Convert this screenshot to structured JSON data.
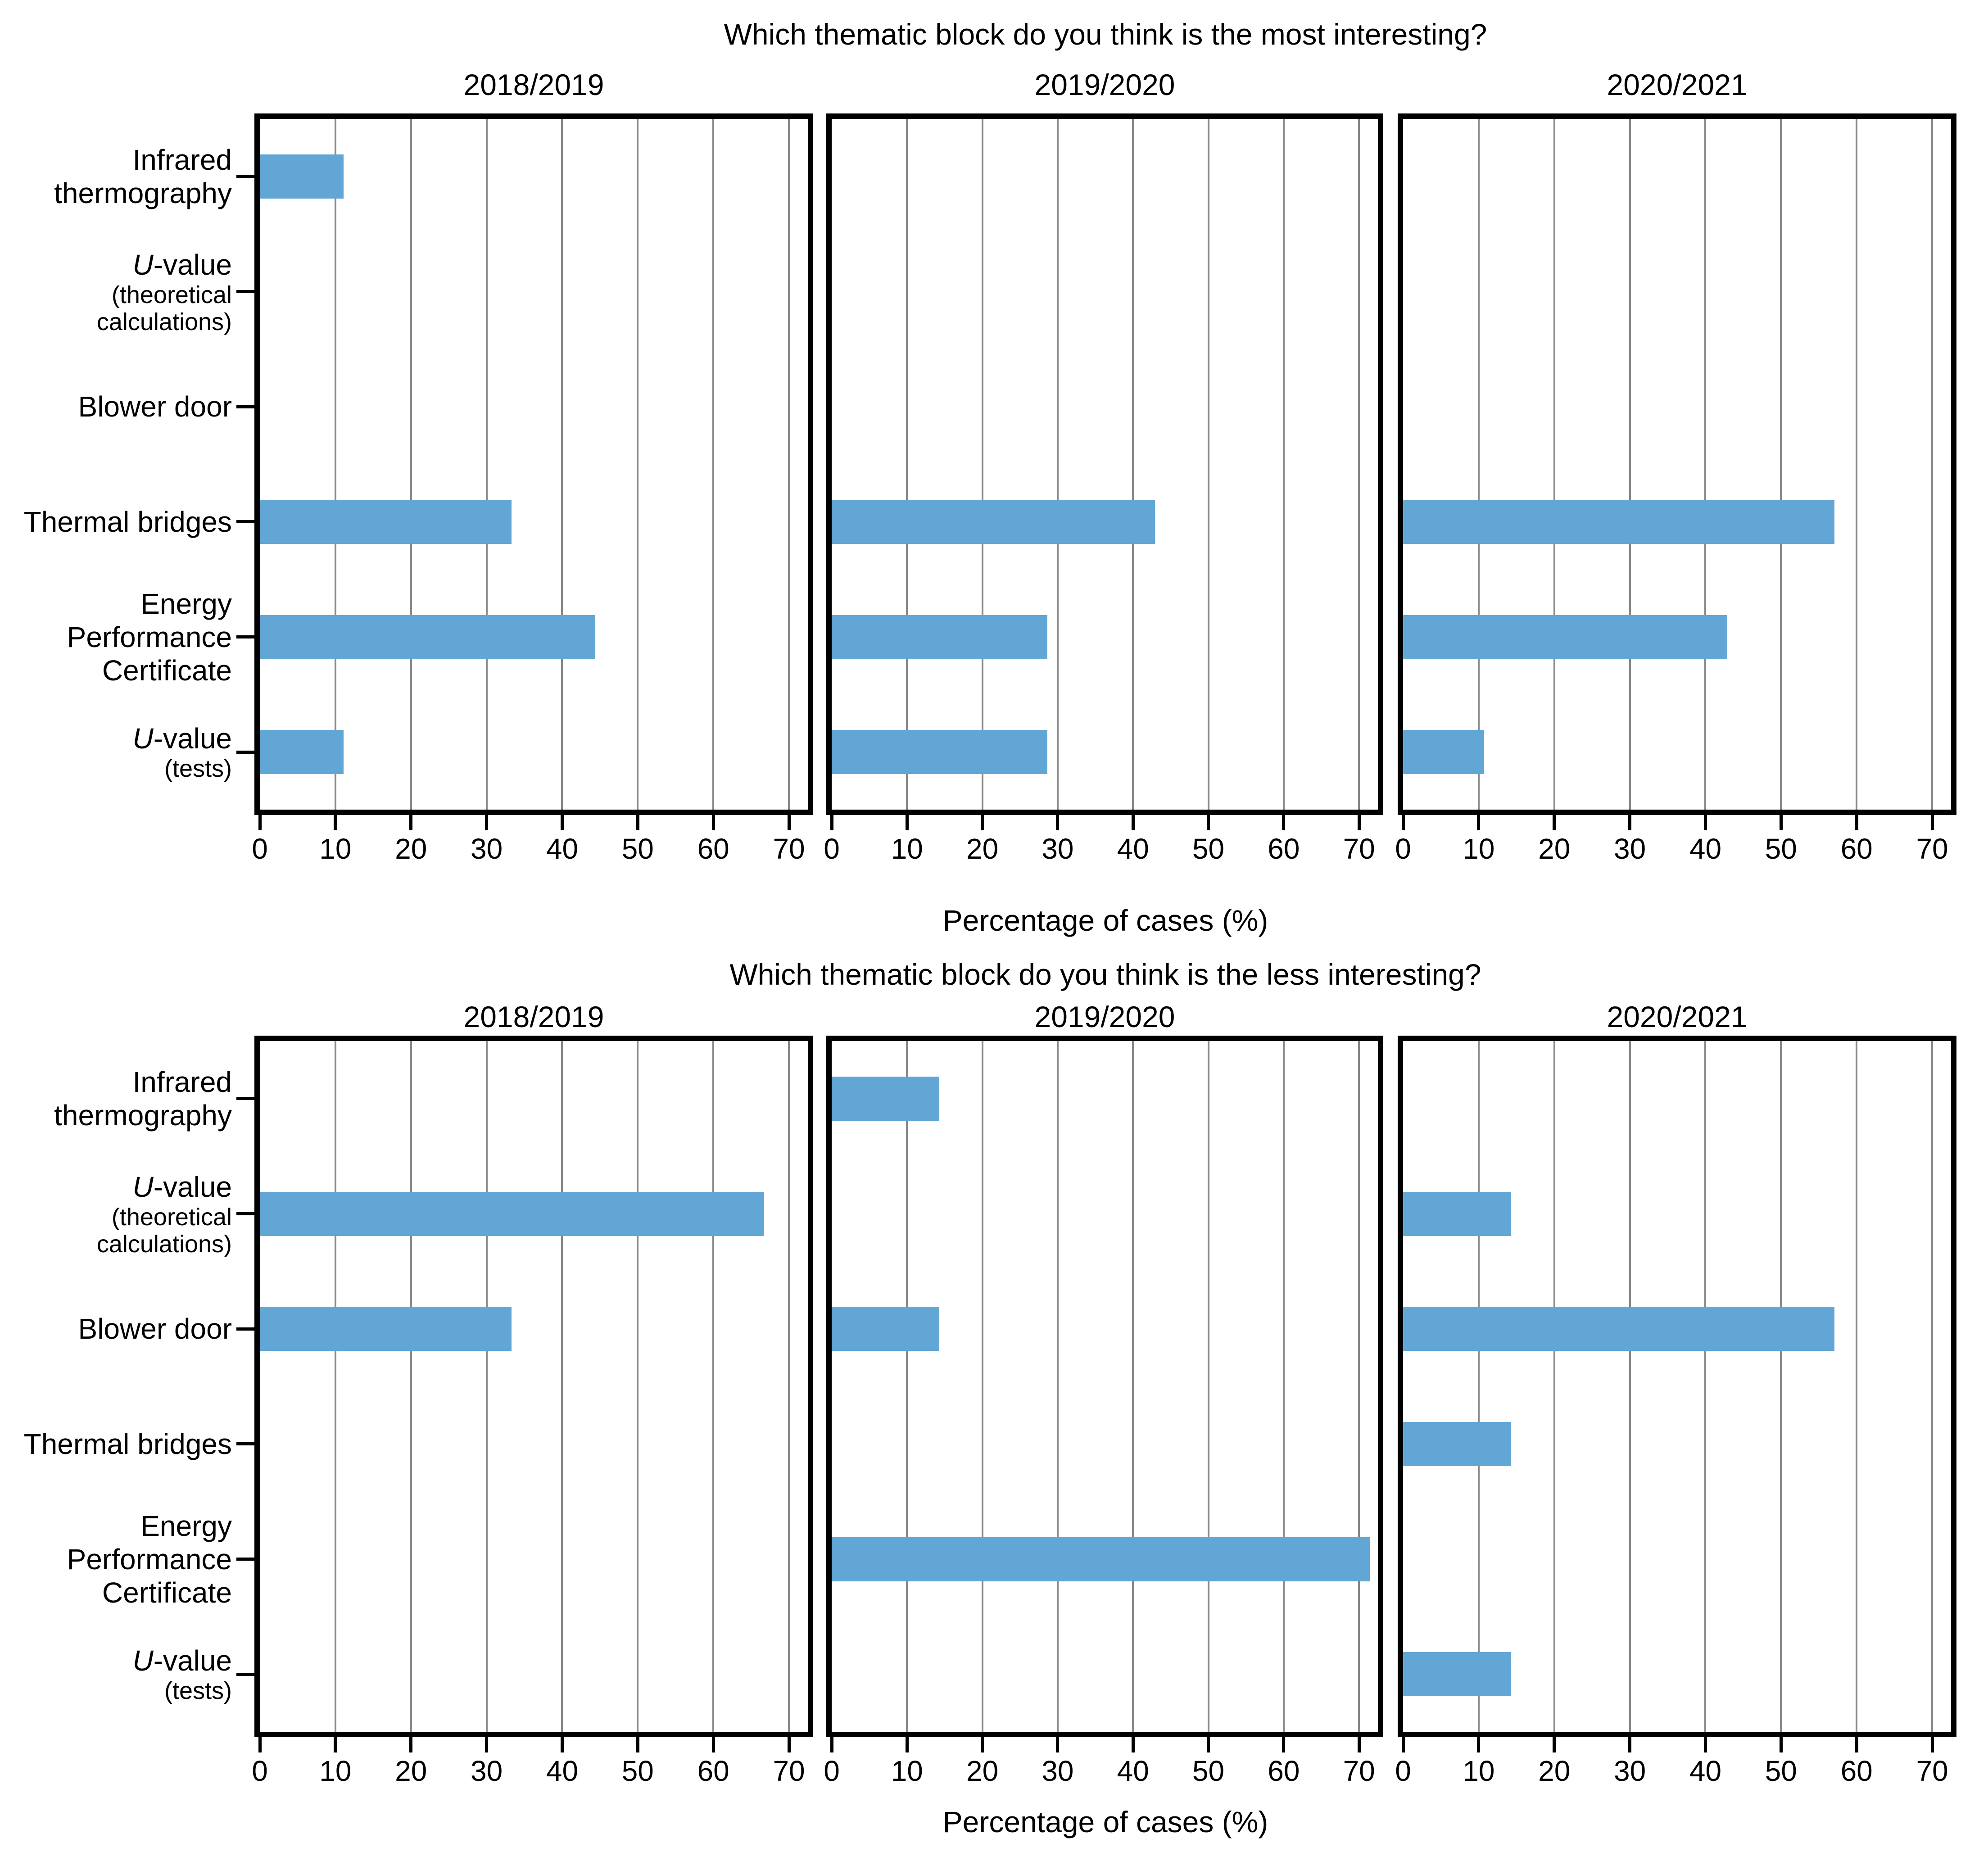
{
  "figure": {
    "background": "#ffffff",
    "colors": {
      "bar": "#62a6d6",
      "grid": "#888888",
      "axis": "#000000",
      "text": "#000000"
    }
  },
  "category_labels": [
    {
      "id": "infrared-thermography",
      "lines": [
        {
          "text": "Infrared"
        },
        {
          "text": "thermography"
        }
      ]
    },
    {
      "id": "u-value-theoretical-calculations",
      "lines": [
        {
          "italic_head": "U",
          "rest": "-value"
        },
        {
          "text": "(theoretical",
          "small": true
        },
        {
          "text": "calculations)",
          "small": true
        }
      ]
    },
    {
      "id": "blower-door",
      "lines": [
        {
          "text": "Blower door"
        }
      ]
    },
    {
      "id": "thermal-bridges",
      "lines": [
        {
          "text": "Thermal bridges"
        }
      ]
    },
    {
      "id": "energy-performance-certificate",
      "lines": [
        {
          "text": "Energy"
        },
        {
          "text": "Performance"
        },
        {
          "text": "Certificate"
        }
      ]
    },
    {
      "id": "u-value-tests",
      "lines": [
        {
          "italic_head": "U",
          "rest": "-value"
        },
        {
          "text": "(tests)",
          "small": true
        }
      ]
    }
  ],
  "chart_data": [
    {
      "type": "bar",
      "orientation": "horizontal",
      "title": "Which thematic block do you think is the most interesting?",
      "xlabel": "Percentage of cases (%)",
      "xlim": [
        0,
        72.5
      ],
      "xticks": [
        0,
        10,
        20,
        30,
        40,
        50,
        60,
        70
      ],
      "grid": true,
      "bar_color": "#62a6d6",
      "categories": [
        "Infrared thermography",
        "U-value (theoretical calculations)",
        "Blower door",
        "Thermal bridges",
        "Energy Performance Certificate",
        "U-value (tests)"
      ],
      "series": [
        {
          "name": "2018/2019",
          "values": [
            11.1,
            0,
            0,
            33.3,
            44.4,
            11.1
          ]
        },
        {
          "name": "2019/2020",
          "values": [
            0,
            0,
            0,
            42.9,
            28.6,
            28.6
          ]
        },
        {
          "name": "2020/2021",
          "values": [
            0,
            0,
            0,
            57.1,
            42.9,
            10.7
          ]
        }
      ]
    },
    {
      "type": "bar",
      "orientation": "horizontal",
      "title": "Which thematic block do you think is the less interesting?",
      "xlabel": "Percentage of cases (%)",
      "xlim": [
        0,
        72.5
      ],
      "xticks": [
        0,
        10,
        20,
        30,
        40,
        50,
        60,
        70
      ],
      "grid": true,
      "bar_color": "#62a6d6",
      "categories": [
        "Infrared thermography",
        "U-value (theoretical calculations)",
        "Blower door",
        "Thermal bridges",
        "Energy Performance Certificate",
        "U-value (tests)"
      ],
      "series": [
        {
          "name": "2018/2019",
          "values": [
            0,
            66.7,
            33.3,
            0,
            0,
            0
          ]
        },
        {
          "name": "2019/2020",
          "values": [
            14.3,
            0,
            14.3,
            0,
            71.4,
            0
          ]
        },
        {
          "name": "2020/2021",
          "values": [
            0,
            14.3,
            57.1,
            14.3,
            0,
            14.3
          ]
        }
      ]
    }
  ]
}
